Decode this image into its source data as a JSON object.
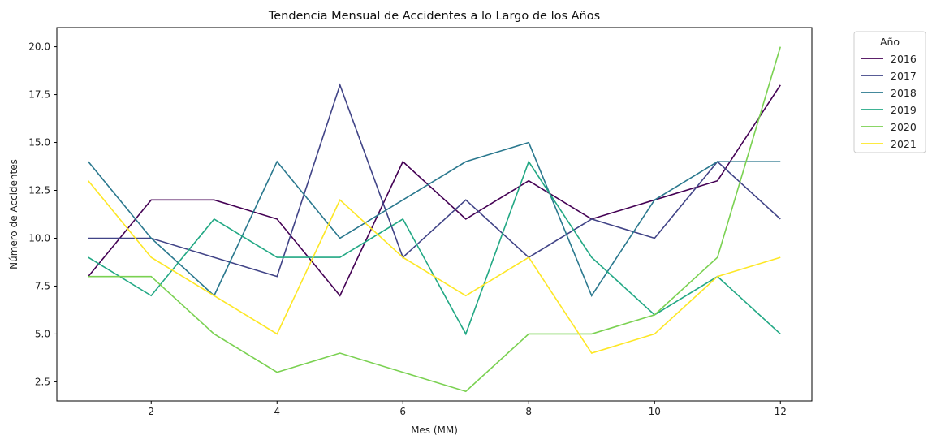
{
  "chart_data": {
    "type": "line",
    "title": "Tendencia Mensual de Accidentes a lo Largo de los Años",
    "xlabel": "Mes (MM)",
    "ylabel": "Número de Accidentes",
    "xlim": [
      0.5,
      12.5
    ],
    "ylim": [
      1.5,
      21.0
    ],
    "xticks": [
      2,
      4,
      6,
      8,
      10,
      12
    ],
    "yticks": [
      2.5,
      5.0,
      7.5,
      10.0,
      12.5,
      15.0,
      17.5,
      20.0
    ],
    "ytick_labels": [
      "2.5",
      "5.0",
      "7.5",
      "10.0",
      "12.5",
      "15.0",
      "17.5",
      "20.0"
    ],
    "grid": false,
    "legend": {
      "title": "Año",
      "placement": "outside-top-right"
    },
    "x": [
      1,
      2,
      3,
      4,
      5,
      6,
      7,
      8,
      9,
      10,
      11,
      12
    ],
    "series": [
      {
        "name": "2016",
        "color": "#440154",
        "values": [
          8,
          12,
          12,
          11,
          7,
          14,
          11,
          13,
          11,
          12,
          13,
          18
        ]
      },
      {
        "name": "2017",
        "color": "#414487",
        "values": [
          10,
          10,
          9,
          8,
          18,
          9,
          12,
          9,
          11,
          10,
          14,
          11
        ]
      },
      {
        "name": "2018",
        "color": "#2a788e",
        "values": [
          14,
          10,
          7,
          14,
          10,
          12,
          14,
          15,
          7,
          12,
          14,
          14
        ]
      },
      {
        "name": "2019",
        "color": "#22a884",
        "values": [
          9,
          7,
          11,
          9,
          9,
          11,
          5,
          14,
          9,
          6,
          8,
          5
        ]
      },
      {
        "name": "2020",
        "color": "#7ad151",
        "values": [
          8,
          8,
          5,
          3,
          4,
          3,
          2,
          5,
          5,
          6,
          9,
          20
        ]
      },
      {
        "name": "2021",
        "color": "#fde725",
        "values": [
          13,
          9,
          7,
          5,
          12,
          9,
          7,
          9,
          4,
          5,
          8,
          9
        ]
      }
    ]
  }
}
